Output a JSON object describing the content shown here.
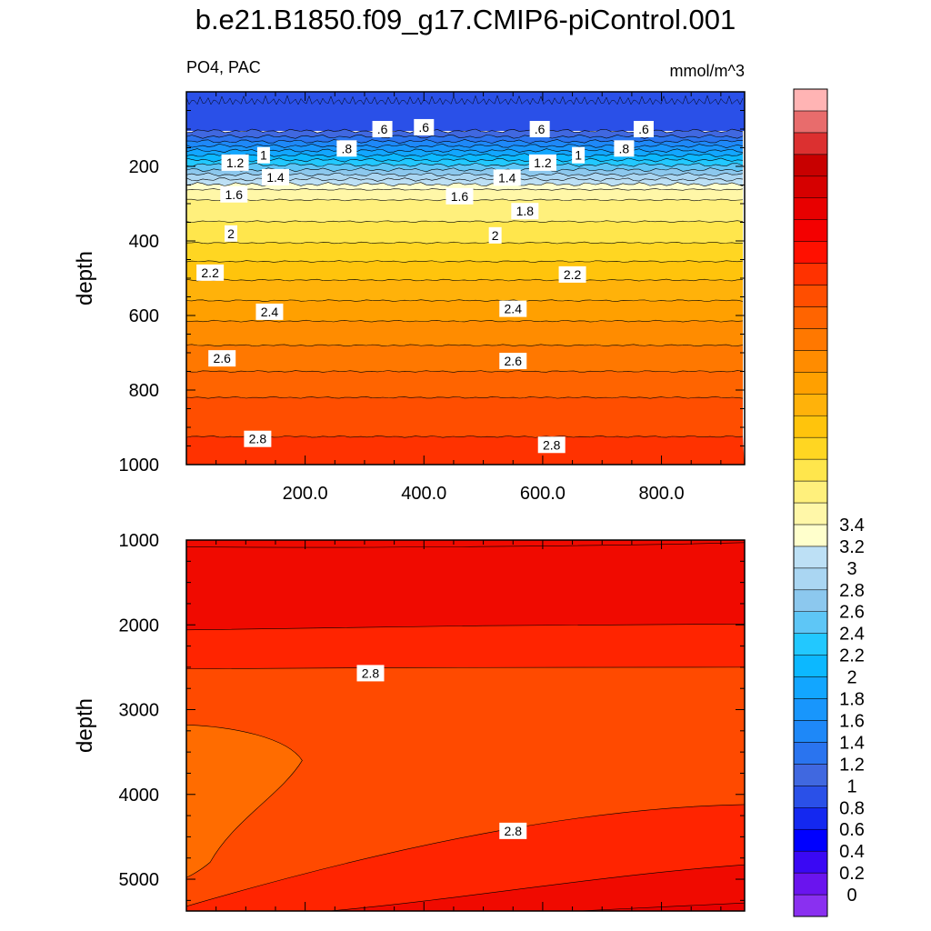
{
  "title": "b.e21.B1850.f09_g17.CMIP6-piControl.001",
  "left_string": "PO4, PAC",
  "right_string": "mmol/m^3",
  "chart_data": {
    "type": "heatmap",
    "variable": "PO4",
    "region": "PAC",
    "units": "mmol/m^3",
    "x_ticks": [
      "200.0",
      "400.0",
      "600.0",
      "800.0"
    ],
    "panels": [
      {
        "name": "upper",
        "ylabel": "depth",
        "xlim": [
          0,
          940
        ],
        "ylim": [
          1000,
          0
        ],
        "y_ticks": [
          200,
          400,
          600,
          800,
          1000
        ],
        "contour_depths": [
          [
            0.5,
            105
          ],
          [
            0.6,
            120
          ],
          [
            0.7,
            133
          ],
          [
            0.8,
            145
          ],
          [
            0.9,
            158
          ],
          [
            1.0,
            170
          ],
          [
            1.1,
            183
          ],
          [
            1.2,
            196
          ],
          [
            1.3,
            209
          ],
          [
            1.4,
            222
          ],
          [
            1.5,
            235
          ],
          [
            1.6,
            248
          ],
          [
            1.7,
            262
          ],
          [
            1.8,
            290
          ],
          [
            1.9,
            348
          ],
          [
            2.0,
            405
          ],
          [
            2.1,
            455
          ],
          [
            2.2,
            505
          ],
          [
            2.3,
            560
          ],
          [
            2.4,
            615
          ],
          [
            2.5,
            680
          ],
          [
            2.6,
            750
          ],
          [
            2.7,
            820
          ],
          [
            2.8,
            925
          ]
        ],
        "labels": [
          {
            "v": ".6",
            "x": 330,
            "d": 100
          },
          {
            "v": ".6",
            "x": 400,
            "d": 95
          },
          {
            "v": ".6",
            "x": 595,
            "d": 100
          },
          {
            "v": ".6",
            "x": 770,
            "d": 100
          },
          {
            "v": ".8",
            "x": 270,
            "d": 152
          },
          {
            "v": ".8",
            "x": 737,
            "d": 152
          },
          {
            "v": "1",
            "x": 130,
            "d": 170
          },
          {
            "v": "1",
            "x": 660,
            "d": 170
          },
          {
            "v": "1.2",
            "x": 82,
            "d": 190
          },
          {
            "v": "1.2",
            "x": 600,
            "d": 190
          },
          {
            "v": "1.4",
            "x": 150,
            "d": 229
          },
          {
            "v": "1.4",
            "x": 540,
            "d": 230
          },
          {
            "v": "1.6",
            "x": 80,
            "d": 275
          },
          {
            "v": "1.6",
            "x": 460,
            "d": 280
          },
          {
            "v": "1.8",
            "x": 570,
            "d": 320
          },
          {
            "v": "2",
            "x": 75,
            "d": 380
          },
          {
            "v": "2",
            "x": 520,
            "d": 385
          },
          {
            "v": "2.2",
            "x": 40,
            "d": 485
          },
          {
            "v": "2.2",
            "x": 650,
            "d": 490
          },
          {
            "v": "2.4",
            "x": 140,
            "d": 590
          },
          {
            "v": "2.4",
            "x": 550,
            "d": 582
          },
          {
            "v": "2.6",
            "x": 60,
            "d": 715
          },
          {
            "v": "2.6",
            "x": 550,
            "d": 722
          },
          {
            "v": "2.8",
            "x": 120,
            "d": 931
          },
          {
            "v": "2.8",
            "x": 615,
            "d": 947
          }
        ]
      },
      {
        "name": "lower",
        "ylabel": "depth",
        "xlim": [
          0,
          940
        ],
        "ylim": [
          5375,
          1000
        ],
        "y_ticks": [
          1000,
          2000,
          3000,
          4000,
          5000
        ],
        "regions": [
          {
            "value_range": [
              2.9,
              3.0
            ],
            "color": "#f00a00"
          },
          {
            "value_range": [
              2.8,
              2.9
            ],
            "color": "#ff2400"
          },
          {
            "value_range": [
              2.7,
              2.8
            ],
            "color": "#ff4a00"
          },
          {
            "value_range": [
              2.6,
              2.7
            ],
            "color": "#ff6c00"
          }
        ],
        "labels": [
          {
            "v": "2.8",
            "x": 310,
            "d": 2570
          },
          {
            "v": "2.8",
            "x": 550,
            "d": 4430
          }
        ]
      }
    ],
    "colorbar": {
      "labels": [
        "0",
        "0.2",
        "0.4",
        "0.6",
        "0.8",
        "1",
        "1.2",
        "1.4",
        "1.6",
        "1.8",
        "2",
        "2.2",
        "2.4",
        "2.6",
        "2.8",
        "3",
        "3.2",
        "3.4"
      ],
      "colors": [
        "#8a30f0",
        "#6a14ee",
        "#3a08f4",
        "#0000ff",
        "#1428f0",
        "#2a50e8",
        "#4068e0",
        "#2a74ef",
        "#1e88f8",
        "#1896fc",
        "#12a6ff",
        "#0cb8ff",
        "#22c8ff",
        "#5ec6f6",
        "#8cc8ee",
        "#aad6f2",
        "#bde0f5",
        "#ffffcc",
        "#fff7a8",
        "#fff07c",
        "#ffe64c",
        "#ffd622",
        "#ffc40c",
        "#ffb20a",
        "#ffa000",
        "#ff8c00",
        "#ff7800",
        "#ff6400",
        "#ff4e00",
        "#ff3200",
        "#ff1000",
        "#f40000",
        "#e80000",
        "#d60000",
        "#c80000",
        "#dc3030",
        "#e86c6c",
        "#ffb4b4"
      ]
    }
  }
}
